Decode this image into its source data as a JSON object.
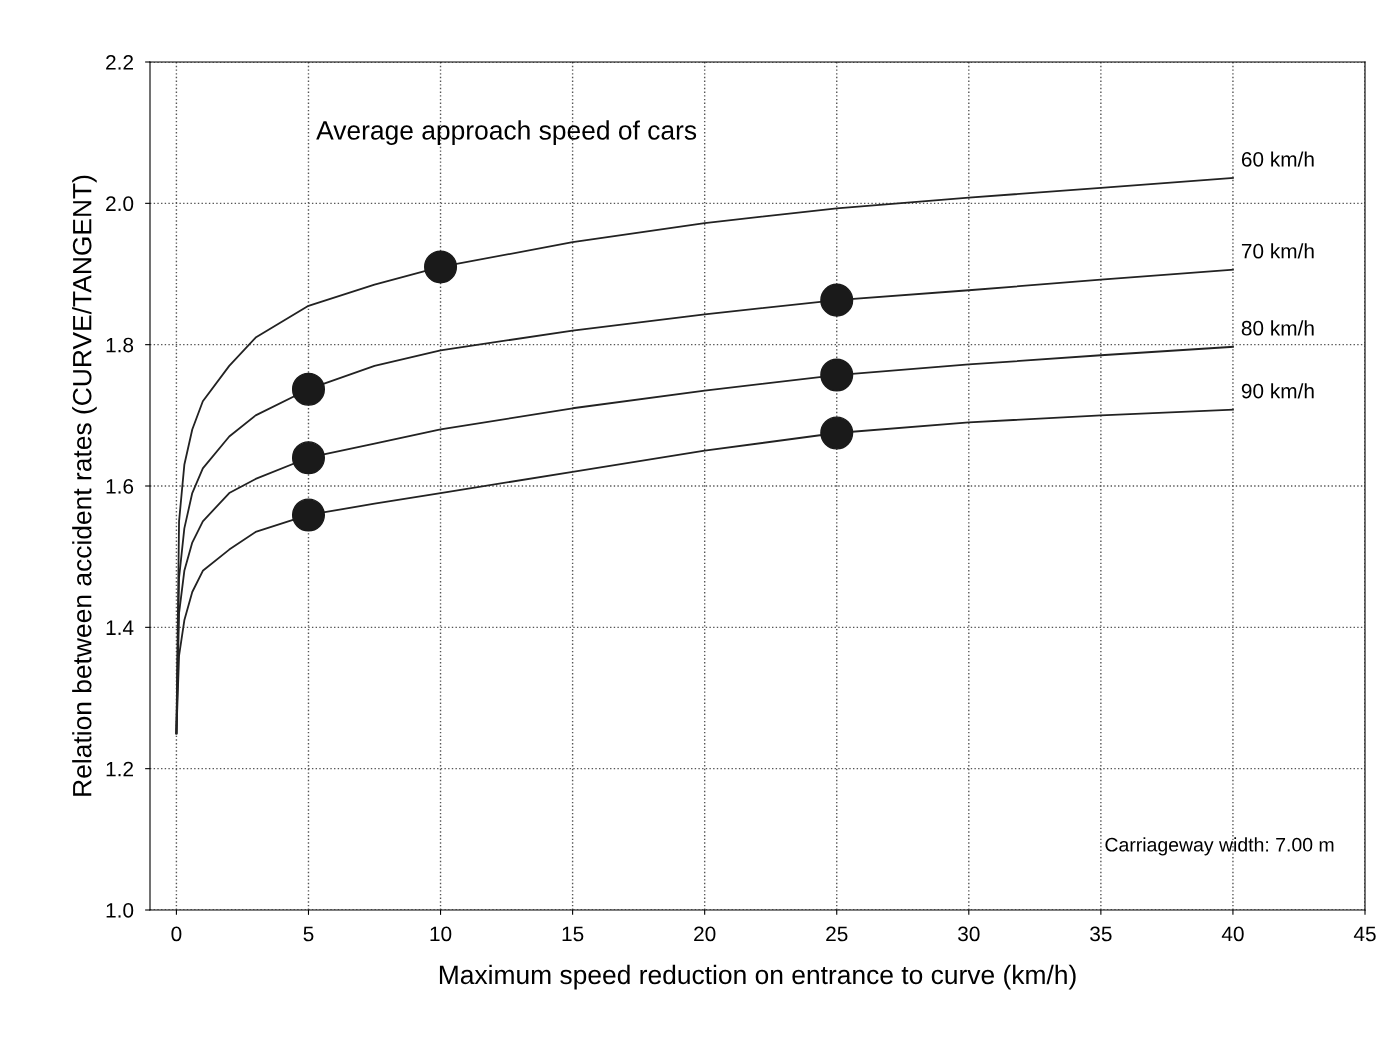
{
  "chart_data": {
    "type": "line",
    "title": "Average approach speed of cars",
    "xlabel": "Maximum speed reduction on entrance to curve (km/h)",
    "ylabel": "Relation between accident rates (CURVE/TANGENT)",
    "x": [
      0,
      0.1,
      0.3,
      0.6,
      1,
      2,
      3,
      5,
      7.5,
      10,
      15,
      20,
      25,
      30,
      35,
      40
    ],
    "series": [
      {
        "name": "60 km/h",
        "color": "#222222",
        "values": [
          1.25,
          1.55,
          1.63,
          1.68,
          1.72,
          1.77,
          1.81,
          1.855,
          1.885,
          1.91,
          1.945,
          1.972,
          1.993,
          2.008,
          2.022,
          2.036
        ]
      },
      {
        "name": "70 km/h",
        "color": "#222222",
        "values": [
          1.25,
          1.47,
          1.54,
          1.59,
          1.625,
          1.67,
          1.7,
          1.737,
          1.77,
          1.792,
          1.82,
          1.843,
          1.863,
          1.877,
          1.892,
          1.906
        ]
      },
      {
        "name": "80 km/h",
        "color": "#222222",
        "values": [
          1.25,
          1.42,
          1.48,
          1.52,
          1.55,
          1.59,
          1.61,
          1.64,
          1.66,
          1.68,
          1.71,
          1.735,
          1.757,
          1.772,
          1.785,
          1.797
        ]
      },
      {
        "name": "90 km/h",
        "color": "#222222",
        "values": [
          1.25,
          1.36,
          1.41,
          1.45,
          1.48,
          1.51,
          1.535,
          1.559,
          1.575,
          1.59,
          1.62,
          1.65,
          1.675,
          1.69,
          1.7,
          1.708
        ]
      },
      {
        "type": "scatter",
        "color": "#1a1a1a",
        "marker": "circle",
        "x": [
          10,
          5,
          25,
          5,
          25,
          5,
          25
        ],
        "values": [
          1.91,
          1.737,
          1.863,
          1.64,
          1.757,
          1.559,
          1.675
        ]
      }
    ],
    "xlim": [
      -1,
      45
    ],
    "ylim": [
      1.0,
      2.2
    ],
    "xticks": [
      0,
      5,
      10,
      15,
      20,
      25,
      30,
      35,
      40,
      45
    ],
    "yticks": [
      {
        "value": 1,
        "label": "1.0"
      },
      1.2,
      1.4,
      1.6,
      1.8,
      {
        "value": 2,
        "label": "2.0"
      },
      2.2
    ],
    "grid": true,
    "line_style": "solid",
    "marker": "none",
    "annotations": [
      "Carriageway width: 7.00 m"
    ]
  }
}
